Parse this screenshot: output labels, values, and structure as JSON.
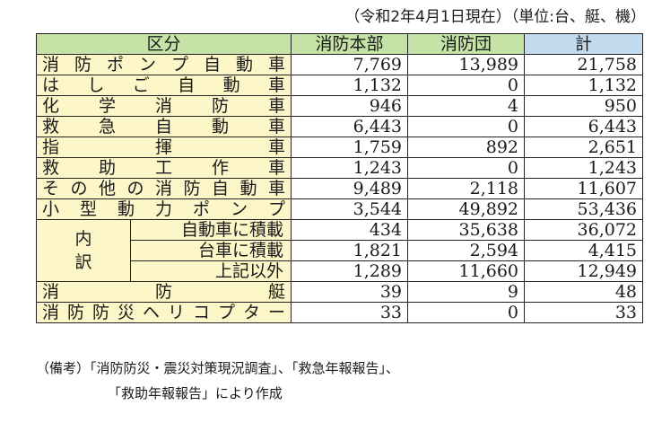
{
  "caption": "（令和2年4月1日現在）（単位:台、艇、機）",
  "header": {
    "label": "区分",
    "col1": "消防本部",
    "col2": "消防団",
    "total": "計"
  },
  "rows_a": [
    {
      "label": "消防ポンプ自動車",
      "c1": "7,769",
      "c2": "13,989",
      "total": "21,758"
    },
    {
      "label": "はしご自動車",
      "c1": "1,132",
      "c2": "0",
      "total": "1,132"
    },
    {
      "label": "化学消防車",
      "c1": "946",
      "c2": "4",
      "total": "950"
    },
    {
      "label": "救急自動車",
      "c1": "6,443",
      "c2": "0",
      "total": "6,443"
    },
    {
      "label": "指揮車",
      "c1": "1,759",
      "c2": "892",
      "total": "2,651"
    },
    {
      "label": "救助工作車",
      "c1": "1,243",
      "c2": "0",
      "total": "1,243"
    },
    {
      "label": "その他の消防自動車",
      "c1": "9,489",
      "c2": "2,118",
      "total": "11,607"
    },
    {
      "label": "小型動力ポンプ",
      "c1": "3,544",
      "c2": "49,892",
      "total": "53,436"
    }
  ],
  "breakdown": {
    "group_label": "内訳",
    "rows": [
      {
        "label": "自動車に積載",
        "c1": "434",
        "c2": "35,638",
        "total": "36,072"
      },
      {
        "label": "台車に積載",
        "c1": "1,821",
        "c2": "2,594",
        "total": "4,415"
      },
      {
        "label": "上記以外",
        "c1": "1,289",
        "c2": "11,660",
        "total": "12,949"
      }
    ]
  },
  "rows_b": [
    {
      "label": "消防艇",
      "c1": "39",
      "c2": "9",
      "total": "48"
    },
    {
      "label": "消防防災ヘリコプター",
      "c1": "33",
      "c2": "0",
      "total": "33"
    }
  ],
  "note_line1": "（備考）「消防防災・震災対策現況調査」、「救急年報報告」、",
  "note_line2": "「救助年報報告」により作成"
}
